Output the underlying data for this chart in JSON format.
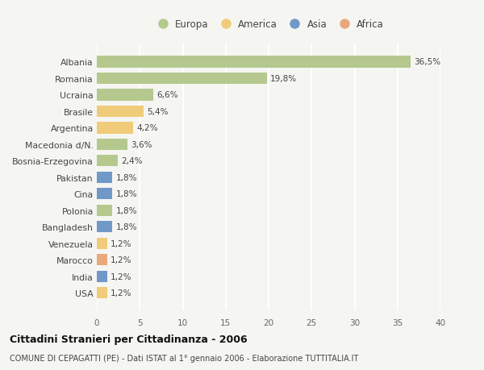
{
  "categories": [
    "Albania",
    "Romania",
    "Ucraina",
    "Brasile",
    "Argentina",
    "Macedonia d/N.",
    "Bosnia-Erzegovina",
    "Pakistan",
    "Cina",
    "Polonia",
    "Bangladesh",
    "Venezuela",
    "Marocco",
    "India",
    "USA"
  ],
  "values": [
    36.5,
    19.8,
    6.6,
    5.4,
    4.2,
    3.6,
    2.4,
    1.8,
    1.8,
    1.8,
    1.8,
    1.2,
    1.2,
    1.2,
    1.2
  ],
  "labels": [
    "36,5%",
    "19,8%",
    "6,6%",
    "5,4%",
    "4,2%",
    "3,6%",
    "2,4%",
    "1,8%",
    "1,8%",
    "1,8%",
    "1,8%",
    "1,2%",
    "1,2%",
    "1,2%",
    "1,2%"
  ],
  "colors": [
    "#b5c98e",
    "#b5c98e",
    "#b5c98e",
    "#f0cc7a",
    "#f0cc7a",
    "#b5c98e",
    "#b5c98e",
    "#7099c8",
    "#7099c8",
    "#b5c98e",
    "#7099c8",
    "#f0cc7a",
    "#e8a87a",
    "#7099c8",
    "#f0cc7a"
  ],
  "legend_labels": [
    "Europa",
    "America",
    "Asia",
    "Africa"
  ],
  "legend_colors": [
    "#b5c98e",
    "#f0cc7a",
    "#7099c8",
    "#e8a87a"
  ],
  "title": "Cittadini Stranieri per Cittadinanza - 2006",
  "subtitle": "COMUNE DI CEPAGATTI (PE) - Dati ISTAT al 1° gennaio 2006 - Elaborazione TUTTITALIA.IT",
  "xlim": [
    0,
    40
  ],
  "xticks": [
    0,
    5,
    10,
    15,
    20,
    25,
    30,
    35,
    40
  ],
  "background_color": "#f5f5f2",
  "grid_color": "#ffffff",
  "bar_height": 0.7
}
